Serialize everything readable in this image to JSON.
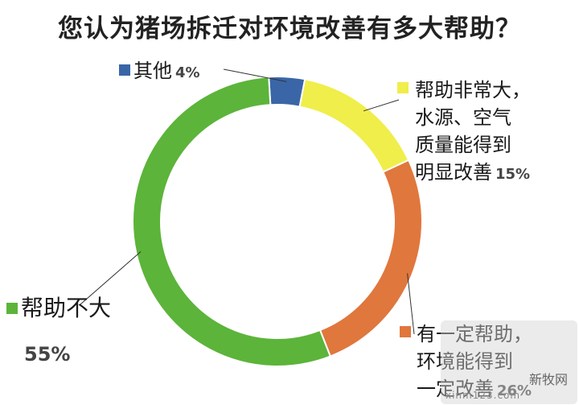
{
  "chart_data": {
    "type": "pie",
    "title": "您认为猪场拆迁对环境改善有多大帮助？",
    "series": [
      {
        "name": "其他",
        "lines": [
          "其他"
        ],
        "pct_label": "4%",
        "value": 4,
        "color": "#3a66a8"
      },
      {
        "name": "帮助非常大，水源、空气质量能得到明显改善",
        "lines": [
          "帮助非常大，",
          "水源、空气",
          "质量能得到",
          "明显改善"
        ],
        "pct_label": "15%",
        "value": 15,
        "color": "#f0ee4a"
      },
      {
        "name": "有一定帮助，环境能得到一定改善",
        "lines": [
          "有一定帮助，",
          "环境能得到",
          "一定改善"
        ],
        "pct_label": "26%",
        "value": 26,
        "color": "#e0773d"
      },
      {
        "name": "帮助不大",
        "lines": [
          "帮助不大"
        ],
        "pct_label": "55%",
        "value": 55,
        "color": "#5cb43a"
      }
    ]
  },
  "watermark": {
    "brand": "新牧网",
    "url": "xinm123.com"
  }
}
